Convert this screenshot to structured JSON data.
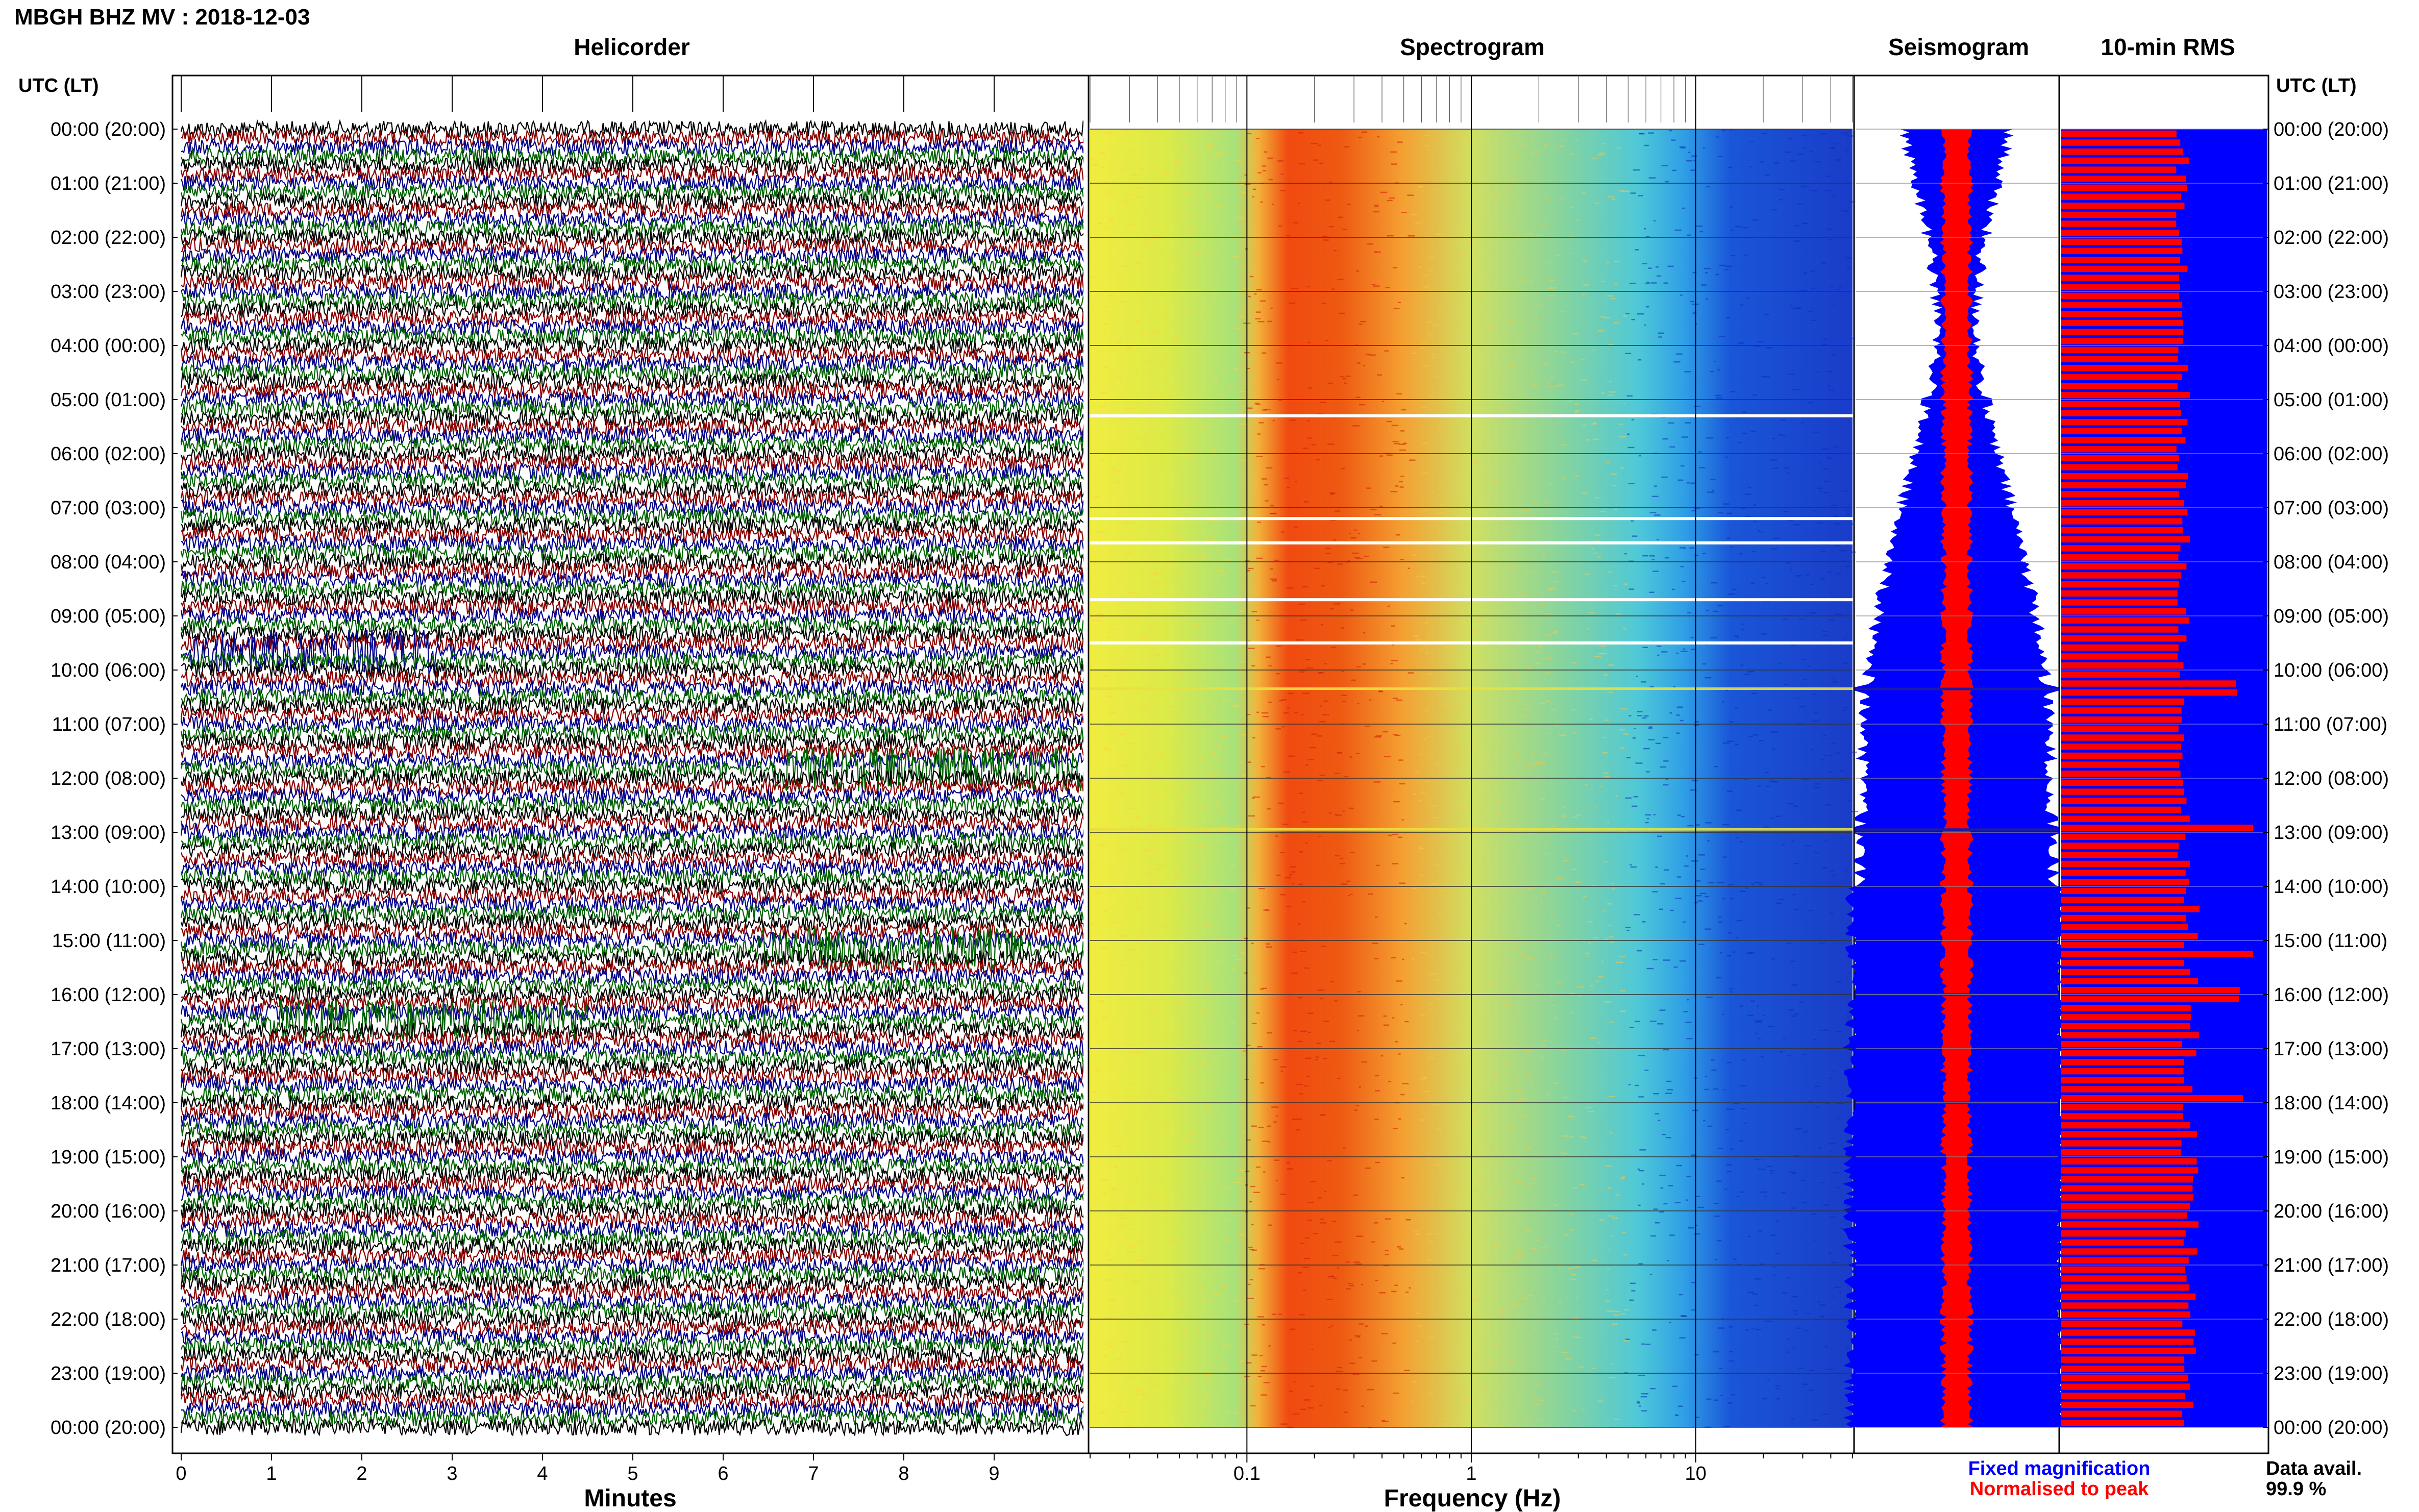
{
  "header": {
    "station_title": "MBGH BHZ MV : 2018-12-03"
  },
  "panels": {
    "helicorder": "Helicorder",
    "spectrogram": "Spectrogram",
    "seismogram": "Seismogram",
    "rms": "10-min RMS"
  },
  "axes": {
    "time_header": "UTC (LT)",
    "minutes_label": "Minutes",
    "frequency_label": "Frequency (Hz)"
  },
  "legend": {
    "fixed": "Fixed magnification",
    "normalised": "Normalised to peak",
    "data_avail_label": "Data avail.",
    "data_avail_value": "99.9 %"
  },
  "colors": {
    "black_trace": "#000000",
    "red_trace": "#8b0000",
    "blue_trace": "#00008b",
    "green_trace": "#006400",
    "fixed": "#0000ff",
    "normalised": "#ff0000"
  },
  "chart_data": [
    {
      "type": "line",
      "panel": "Helicorder",
      "xlabel": "Minutes",
      "xlim": [
        0,
        10
      ],
      "x_ticks": [
        "0",
        "1",
        "2",
        "3",
        "4",
        "5",
        "6",
        "7",
        "8",
        "9"
      ],
      "y_ticks_utc_lt": [
        "00:00 (20:00)",
        "01:00 (21:00)",
        "02:00 (22:00)",
        "03:00 (23:00)",
        "04:00 (00:00)",
        "05:00 (01:00)",
        "06:00 (02:00)",
        "07:00 (03:00)",
        "08:00 (04:00)",
        "09:00 (05:00)",
        "10:00 (06:00)",
        "11:00 (07:00)",
        "12:00 (08:00)",
        "13:00 (09:00)",
        "14:00 (10:00)",
        "15:00 (11:00)",
        "16:00 (12:00)",
        "17:00 (13:00)",
        "18:00 (14:00)",
        "19:00 (15:00)",
        "20:00 (16:00)",
        "21:00 (17:00)",
        "22:00 (18:00)",
        "23:00 (19:00)",
        "00:00 (20:00)"
      ],
      "trace_colors": [
        "black",
        "red",
        "blue",
        "green"
      ],
      "lines_per_hour": 6,
      "bursts": [
        {
          "hour": 9.7,
          "start_min": 0.1,
          "end_min": 2.8,
          "color": "blue"
        },
        {
          "hour": 12.0,
          "start_min": 6.5,
          "end_min": 10.0,
          "color": "green"
        },
        {
          "hour": 15.2,
          "start_min": 6.4,
          "end_min": 9.3,
          "color": "green"
        },
        {
          "hour": 16.5,
          "start_min": 1.0,
          "end_min": 4.5,
          "color": "green"
        }
      ]
    },
    {
      "type": "heatmap",
      "panel": "Spectrogram",
      "xlabel": "Frequency (Hz)",
      "xscale": "log",
      "xlim": [
        0.02,
        50
      ],
      "x_ticks": [
        "0.1",
        "1",
        "10"
      ],
      "ylim_hours": [
        0,
        24
      ],
      "peak_band_hz": [
        0.15,
        0.4
      ],
      "gap_hours": [
        5.3,
        7.2,
        7.65,
        8.7,
        9.5
      ],
      "transient_hours": [
        10.35,
        12.95
      ]
    },
    {
      "type": "area",
      "panel": "Seismogram",
      "ylim_hours": [
        0,
        24
      ],
      "series": [
        {
          "name": "Fixed magnification",
          "color": "#0000ff"
        },
        {
          "name": "Normalised to peak",
          "color": "#ff0000"
        }
      ],
      "events_hours": [
        10.35,
        12.95,
        16.0,
        18.0
      ]
    },
    {
      "type": "bar",
      "panel": "10-min RMS",
      "ylim_hours": [
        0,
        24
      ],
      "bin_minutes": 10,
      "bar_color": "#ff0000",
      "background_color": "#0000ff",
      "peaks_hours": [
        10.35,
        12.95,
        15.2,
        16.0,
        17.9
      ]
    }
  ]
}
